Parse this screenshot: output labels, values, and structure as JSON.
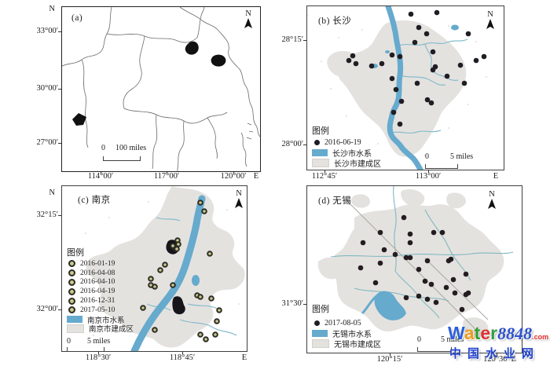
{
  "colors": {
    "water": "#66aacd",
    "stream": "#85bccd",
    "builtup": "#e4e2df",
    "dot": "#201d24",
    "ring_fill": "#c9c98f",
    "boundary": "#6a6a6a"
  },
  "panels": {
    "a": {
      "label": "(a)",
      "north_axis_label": "N",
      "east_axis_label": "E",
      "compass_label": "N",
      "y_ticks": [
        "33°00′",
        "30°00′",
        "27°00′"
      ],
      "x_ticks": [
        "114°00′",
        "117°00′",
        "120°00′"
      ],
      "scale_zero": "0",
      "scale_label": "100 miles"
    },
    "b": {
      "label": "(b) 长沙",
      "east_axis_label": "E",
      "compass_label": "N",
      "y_ticks": [
        "28°15′",
        "28°00′"
      ],
      "x_ticks": [
        "112°45′",
        "113°00′"
      ],
      "scale_zero": "0",
      "scale_label": "5 miles",
      "legend_title": "图例",
      "legend_items": [
        {
          "type": "dot",
          "label": "2016-06-19"
        },
        {
          "type": "water",
          "label": "长沙市水系"
        },
        {
          "type": "builtup",
          "label": "长沙市建成区"
        }
      ],
      "points": {
        "r": 3.3,
        "fill": "#201d24",
        "coords": [
          [
            132,
            10
          ],
          [
            165,
            8
          ],
          [
            142,
            27
          ],
          [
            152,
            35
          ],
          [
            205,
            35
          ],
          [
            137,
            46
          ],
          [
            58,
            63
          ],
          [
            53,
            69
          ],
          [
            62,
            73
          ],
          [
            82,
            76
          ],
          [
            95,
            73
          ],
          [
            108,
            62
          ],
          [
            118,
            64
          ],
          [
            160,
            58
          ],
          [
            225,
            64
          ],
          [
            215,
            69
          ],
          [
            163,
            77
          ],
          [
            160,
            81
          ],
          [
            195,
            75
          ],
          [
            108,
            92
          ],
          [
            178,
            89
          ],
          [
            200,
            98
          ],
          [
            113,
            106
          ],
          [
            153,
            119
          ],
          [
            158,
            123
          ],
          [
            120,
            121
          ],
          [
            110,
            135
          ],
          [
            118,
            150
          ],
          [
            140,
            98
          ]
        ]
      }
    },
    "c": {
      "label": "(c) 南京",
      "north_axis_label": "N",
      "east_axis_label": "E",
      "compass_label": "N",
      "y_ticks": [
        "32°15′",
        "32°00′"
      ],
      "x_ticks": [
        "118°30′",
        "118°45′"
      ],
      "scale_zero": "0",
      "scale_label": "5 miles",
      "legend_title": "图例",
      "legend_items": [
        {
          "type": "ring",
          "label": "2016-01-19"
        },
        {
          "type": "ring",
          "label": "2016-04-08"
        },
        {
          "type": "ring",
          "label": "2016-04-10"
        },
        {
          "type": "ring",
          "label": "2016-04-19"
        },
        {
          "type": "ring",
          "label": "2016-12-31"
        },
        {
          "type": "ring",
          "label": "2017-05-10"
        },
        {
          "type": "water",
          "label": "南京市水系"
        },
        {
          "type": "builtup",
          "label": "南京市建成区"
        }
      ],
      "points": {
        "r": 2.8,
        "fill": "#c9c98f",
        "stroke": "#2b2b24",
        "stroke_width": 2,
        "coords": [
          [
            176,
            21
          ],
          [
            181,
            32
          ],
          [
            147,
            69
          ],
          [
            143,
            78
          ],
          [
            148,
            74
          ],
          [
            188,
            86
          ],
          [
            125,
            107
          ],
          [
            113,
            118
          ],
          [
            113,
            126
          ],
          [
            118,
            128
          ],
          [
            141,
            126
          ],
          [
            172,
            139
          ],
          [
            176,
            141
          ],
          [
            190,
            143
          ],
          [
            103,
            155
          ],
          [
            200,
            158
          ],
          [
            197,
            172
          ],
          [
            118,
            183
          ],
          [
            176,
            189
          ],
          [
            195,
            189
          ],
          [
            183,
            195
          ],
          [
            141,
            76
          ],
          [
            146,
            80
          ],
          [
            131,
            100
          ]
        ]
      }
    },
    "d": {
      "label": "(d) 无锡",
      "compass_label": "N",
      "y_ticks": [
        "31°30′"
      ],
      "x_ticks": [
        "120°15′",
        "120°30′ E"
      ],
      "scale_zero": "0",
      "scale_label": "5 miles",
      "legend_title": "图例",
      "legend_items": [
        {
          "type": "dot",
          "label": "2017-08-05"
        },
        {
          "type": "water",
          "label": "无锡市水系"
        },
        {
          "type": "builtup",
          "label": "无锡市建成区"
        }
      ],
      "points": {
        "r": 3.3,
        "fill": "#241c20",
        "coords": [
          [
            123,
            40
          ],
          [
            93,
            59
          ],
          [
            131,
            61
          ],
          [
            161,
            59
          ],
          [
            172,
            59
          ],
          [
            71,
            72
          ],
          [
            98,
            81
          ],
          [
            131,
            72
          ],
          [
            112,
            87
          ],
          [
            126,
            91
          ],
          [
            131,
            91
          ],
          [
            153,
            95
          ],
          [
            68,
            104
          ],
          [
            93,
            98
          ],
          [
            142,
            106
          ],
          [
            180,
            95
          ],
          [
            183,
            93
          ],
          [
            186,
            119
          ],
          [
            202,
            112
          ],
          [
            87,
            123
          ],
          [
            150,
            121
          ],
          [
            158,
            125
          ],
          [
            177,
            129
          ],
          [
            188,
            136
          ],
          [
            202,
            138
          ],
          [
            205,
            136
          ],
          [
            126,
            142
          ],
          [
            142,
            140
          ],
          [
            153,
            144
          ],
          [
            164,
            148
          ],
          [
            197,
            157
          ]
        ]
      }
    }
  },
  "watermark": {
    "brand_letters": [
      {
        "ch": "W",
        "style": "color:#2b5fd9"
      },
      {
        "ch": "a",
        "style": "color:#f09c1a"
      },
      {
        "ch": "t",
        "style": "color:#2f9e2f"
      },
      {
        "ch": "e",
        "style": "color:#e03030"
      },
      {
        "ch": "r",
        "style": "color:#2f9e44"
      }
    ],
    "digits": "8848",
    "digits_style": "color:#2d52cc",
    "dotcom": ".com",
    "dotcom_style": "color:#e03030",
    "subtitle": "中国水业网",
    "subtitle_style": "color:#2244cc"
  }
}
